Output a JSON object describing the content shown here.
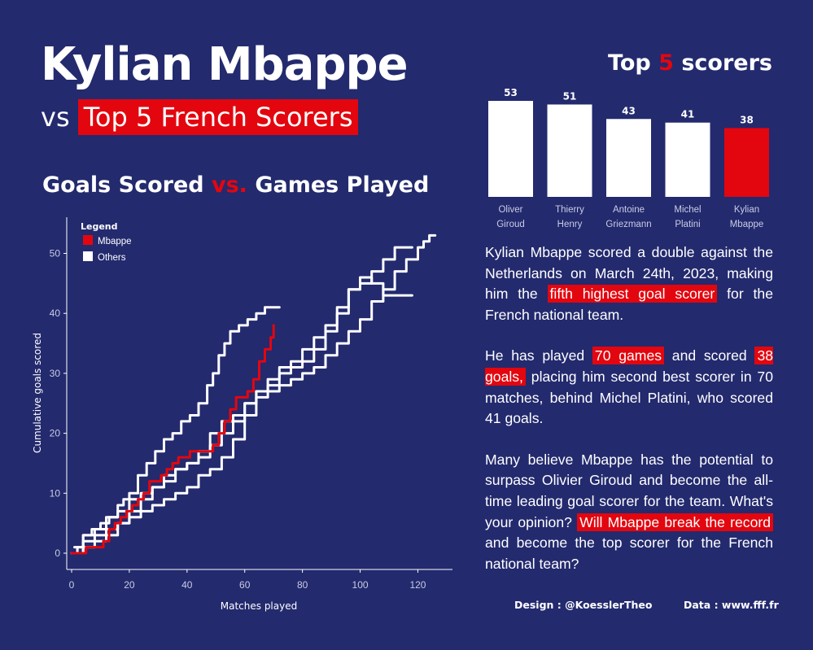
{
  "header": {
    "title": "Kylian Mbappe",
    "subtitle_prefix": "vs",
    "subtitle_highlight": "Top 5 French Scorers"
  },
  "left_heading": {
    "part1": "Goals Scored ",
    "part2": "vs.",
    "part3": " Games Played"
  },
  "right_heading": {
    "part1": "Top ",
    "part2": "5",
    "part3": " scorers"
  },
  "colors": {
    "background": "#232a6e",
    "accent": "#e3060f",
    "others": "#ffffff"
  },
  "story": {
    "p1": [
      {
        "t": "Kylian Mbappe scored a double against the Netherlands on March 24th, 2023, making him the "
      },
      {
        "t": "fifth highest goal scorer",
        "hl": true
      },
      {
        "t": " for the French national team."
      }
    ],
    "p2": [
      {
        "t": "He has played "
      },
      {
        "t": "70 games",
        "hl": true
      },
      {
        "t": " and scored "
      },
      {
        "t": "38 goals,",
        "hl": true
      },
      {
        "t": " placing him second best scorer in 70 matches, behind Michel Platini, who scored 41 goals."
      }
    ],
    "p3": [
      {
        "t": "Many believe Mbappe has the potential to surpass Olivier Giroud and become the all-time leading goal scorer for the team. What's your opinion? "
      },
      {
        "t": "Will Mbappe break the record",
        "hl": true
      },
      {
        "t": " and become the top scorer for the French national team?"
      }
    ]
  },
  "footer": {
    "design": "Design : @KoesslerTheo",
    "data": "Data : www.fff.fr"
  },
  "chart_data": [
    {
      "type": "bar",
      "title": "Top 5 scorers",
      "categories": [
        [
          "Oliver",
          "Giroud"
        ],
        [
          "Thierry",
          "Henry"
        ],
        [
          "Antoine",
          "Griezmann"
        ],
        [
          "Michel",
          "Platini"
        ],
        [
          "Kylian",
          "Mbappe"
        ]
      ],
      "values": [
        53,
        51,
        43,
        41,
        38
      ],
      "highlight_index": 4
    },
    {
      "type": "line",
      "title": "Goals Scored vs. Games Played",
      "xlabel": "Matches played",
      "ylabel": "Cumulative goals scored",
      "xlim": [
        0,
        132
      ],
      "ylim": [
        0,
        56
      ],
      "xticks": [
        0,
        20,
        40,
        60,
        80,
        100,
        120
      ],
      "yticks": [
        0,
        10,
        20,
        30,
        40,
        50
      ],
      "legend": {
        "title": "Legend",
        "placement": "top-left",
        "items": [
          {
            "label": "Mbappe",
            "color": "#e3060f"
          },
          {
            "label": "Others",
            "color": "#ffffff"
          }
        ]
      },
      "series": [
        {
          "name": "Mbappe",
          "color": "#e3060f",
          "points": [
            [
              0,
              0
            ],
            [
              3,
              0
            ],
            [
              5,
              1
            ],
            [
              9,
              1
            ],
            [
              11,
              2
            ],
            [
              13,
              4
            ],
            [
              15,
              5
            ],
            [
              17,
              6
            ],
            [
              19,
              7
            ],
            [
              21,
              8
            ],
            [
              23,
              9
            ],
            [
              25,
              10
            ],
            [
              27,
              12
            ],
            [
              29,
              12
            ],
            [
              31,
              13
            ],
            [
              33,
              14
            ],
            [
              35,
              15
            ],
            [
              37,
              16
            ],
            [
              39,
              16
            ],
            [
              41,
              17
            ],
            [
              43,
              17
            ],
            [
              45,
              17
            ],
            [
              47,
              17
            ],
            [
              49,
              18
            ],
            [
              51,
              20
            ],
            [
              53,
              22
            ],
            [
              55,
              24
            ],
            [
              57,
              26
            ],
            [
              59,
              26
            ],
            [
              61,
              27
            ],
            [
              63,
              29
            ],
            [
              65,
              32
            ],
            [
              67,
              34
            ],
            [
              69,
              36
            ],
            [
              70,
              38
            ]
          ]
        },
        {
          "name": "Others",
          "color": "#ffffff",
          "points": [
            [
              0,
              0
            ],
            [
              2,
              1
            ],
            [
              4,
              3
            ],
            [
              7,
              4
            ],
            [
              10,
              5
            ],
            [
              13,
              6
            ],
            [
              16,
              8
            ],
            [
              18,
              9
            ],
            [
              20,
              10
            ],
            [
              23,
              13
            ],
            [
              26,
              15
            ],
            [
              29,
              17
            ],
            [
              32,
              19
            ],
            [
              35,
              20
            ],
            [
              38,
              22
            ],
            [
              41,
              23
            ],
            [
              44,
              25
            ],
            [
              47,
              28
            ],
            [
              49,
              30
            ],
            [
              51,
              33
            ],
            [
              53,
              35
            ],
            [
              55,
              37
            ],
            [
              58,
              38
            ],
            [
              61,
              39
            ],
            [
              64,
              40
            ],
            [
              67,
              41
            ],
            [
              72,
              41
            ]
          ]
        },
        {
          "name": "Others",
          "color": "#ffffff",
          "points": [
            [
              0,
              0
            ],
            [
              4,
              1
            ],
            [
              8,
              2
            ],
            [
              12,
              3
            ],
            [
              16,
              5
            ],
            [
              20,
              6
            ],
            [
              24,
              7
            ],
            [
              28,
              8
            ],
            [
              32,
              9
            ],
            [
              36,
              10
            ],
            [
              40,
              11
            ],
            [
              44,
              13
            ],
            [
              48,
              14
            ],
            [
              52,
              16
            ],
            [
              56,
              19
            ],
            [
              60,
              23
            ],
            [
              64,
              27
            ],
            [
              68,
              28
            ],
            [
              72,
              30
            ],
            [
              76,
              31
            ],
            [
              80,
              32
            ],
            [
              84,
              34
            ],
            [
              88,
              37
            ],
            [
              92,
              40
            ],
            [
              96,
              44
            ],
            [
              100,
              46
            ],
            [
              104,
              45
            ],
            [
              108,
              43
            ],
            [
              112,
              43
            ],
            [
              115,
              43
            ],
            [
              118,
              43
            ]
          ]
        },
        {
          "name": "Others",
          "color": "#ffffff",
          "points": [
            [
              1,
              1
            ],
            [
              4,
              3
            ],
            [
              8,
              4
            ],
            [
              12,
              6
            ],
            [
              16,
              7
            ],
            [
              20,
              9
            ],
            [
              24,
              10
            ],
            [
              28,
              11
            ],
            [
              32,
              13
            ],
            [
              36,
              14
            ],
            [
              40,
              15
            ],
            [
              44,
              16
            ],
            [
              48,
              18
            ],
            [
              52,
              20
            ],
            [
              56,
              22
            ],
            [
              60,
              25
            ],
            [
              64,
              27
            ],
            [
              68,
              29
            ],
            [
              72,
              31
            ],
            [
              76,
              32
            ],
            [
              80,
              34
            ],
            [
              84,
              36
            ],
            [
              88,
              38
            ],
            [
              92,
              41
            ],
            [
              96,
              44
            ],
            [
              100,
              45
            ],
            [
              104,
              47
            ],
            [
              108,
              49
            ],
            [
              112,
              51
            ],
            [
              116,
              51
            ],
            [
              118,
              51
            ]
          ]
        },
        {
          "name": "Others",
          "color": "#ffffff",
          "points": [
            [
              0,
              0
            ],
            [
              4,
              2
            ],
            [
              8,
              3
            ],
            [
              12,
              4
            ],
            [
              16,
              5
            ],
            [
              20,
              7
            ],
            [
              24,
              9
            ],
            [
              28,
              11
            ],
            [
              32,
              12
            ],
            [
              36,
              14
            ],
            [
              40,
              15
            ],
            [
              44,
              17
            ],
            [
              48,
              20
            ],
            [
              52,
              22
            ],
            [
              56,
              23
            ],
            [
              60,
              25
            ],
            [
              64,
              26
            ],
            [
              68,
              27
            ],
            [
              72,
              28
            ],
            [
              76,
              29
            ],
            [
              80,
              30
            ],
            [
              84,
              31
            ],
            [
              88,
              33
            ],
            [
              92,
              35
            ],
            [
              96,
              37
            ],
            [
              100,
              39
            ],
            [
              104,
              42
            ],
            [
              108,
              44
            ],
            [
              112,
              47
            ],
            [
              116,
              49
            ],
            [
              120,
              51
            ],
            [
              122,
              52
            ],
            [
              124,
              53
            ],
            [
              126,
              53
            ]
          ]
        }
      ]
    }
  ]
}
